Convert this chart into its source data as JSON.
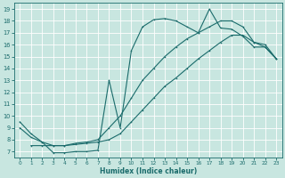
{
  "xlabel": "Humidex (Indice chaleur)",
  "xlim": [
    -0.5,
    23.5
  ],
  "ylim": [
    6.5,
    19.5
  ],
  "xticks": [
    0,
    1,
    2,
    3,
    4,
    5,
    6,
    7,
    8,
    9,
    10,
    11,
    12,
    13,
    14,
    15,
    16,
    17,
    18,
    19,
    20,
    21,
    22,
    23
  ],
  "yticks": [
    7,
    8,
    9,
    10,
    11,
    12,
    13,
    14,
    15,
    16,
    17,
    18,
    19
  ],
  "bg_color": "#c8e6e0",
  "line_color": "#1a6b6b",
  "grid_color": "#ffffff",
  "line1_x": [
    0,
    1,
    2,
    3,
    4,
    5,
    6,
    7,
    8,
    9,
    10,
    11,
    12,
    13,
    14,
    15,
    16,
    17,
    18,
    19,
    20,
    21,
    22,
    23
  ],
  "line1_y": [
    9.5,
    8.5,
    7.8,
    6.9,
    6.9,
    7.0,
    7.0,
    7.1,
    13.0,
    9.0,
    15.5,
    17.5,
    18.1,
    18.2,
    18.0,
    17.5,
    17.0,
    19.0,
    17.4,
    17.3,
    16.7,
    15.8,
    15.8,
    14.8
  ],
  "line2_x": [
    1,
    2,
    3,
    4,
    5,
    6,
    7,
    8,
    9,
    10,
    11,
    12,
    13,
    14,
    15,
    16,
    17,
    18,
    19,
    20,
    21,
    22,
    23
  ],
  "line2_y": [
    7.5,
    7.5,
    7.5,
    7.5,
    7.6,
    7.7,
    7.8,
    8.0,
    8.5,
    9.5,
    10.5,
    11.5,
    12.5,
    13.2,
    14.0,
    14.8,
    15.5,
    16.2,
    16.8,
    16.8,
    16.2,
    15.8,
    14.8
  ],
  "line3_x": [
    0,
    1,
    2,
    3,
    4,
    5,
    6,
    7,
    8,
    9,
    10,
    11,
    12,
    13,
    14,
    15,
    16,
    17,
    18,
    19,
    20,
    21,
    22,
    23
  ],
  "line3_y": [
    9.0,
    8.2,
    7.8,
    7.5,
    7.5,
    7.7,
    7.8,
    8.0,
    9.0,
    10.0,
    11.5,
    13.0,
    14.0,
    15.0,
    15.8,
    16.5,
    17.0,
    17.5,
    18.0,
    18.0,
    17.5,
    16.2,
    16.0,
    14.8
  ]
}
